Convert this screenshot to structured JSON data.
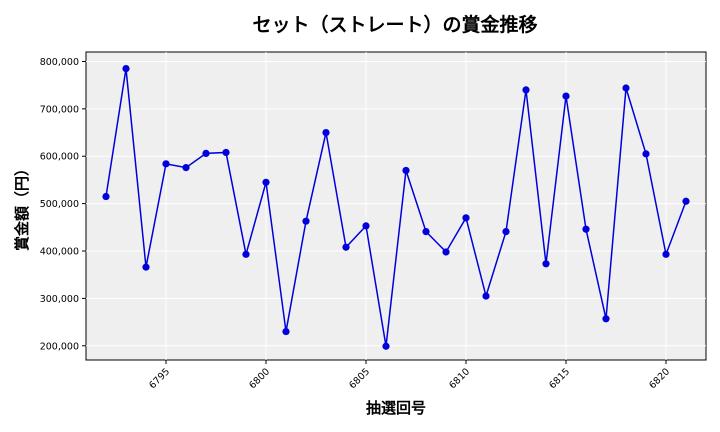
{
  "chart_data": {
    "type": "line",
    "title": "セット（ストレート）の賞金推移",
    "xlabel": "抽選回号",
    "ylabel": "賞金額（円）",
    "xlim": [
      6791,
      6822
    ],
    "ylim": [
      170000,
      820000
    ],
    "xticks": [
      6795,
      6800,
      6805,
      6810,
      6815,
      6820
    ],
    "yticks": [
      200000,
      300000,
      400000,
      500000,
      600000,
      700000,
      800000
    ],
    "ytick_labels": [
      "200,000",
      "300,000",
      "400,000",
      "500,000",
      "600,000",
      "700,000",
      "800,000"
    ],
    "grid": true,
    "background": "#efefef",
    "series": [
      {
        "color": "#0000dd",
        "x": [
          6792,
          6793,
          6794,
          6795,
          6796,
          6797,
          6798,
          6799,
          6800,
          6801,
          6802,
          6803,
          6804,
          6805,
          6806,
          6807,
          6808,
          6809,
          6810,
          6811,
          6812,
          6813,
          6814,
          6815,
          6816,
          6817,
          6818,
          6819,
          6820,
          6821
        ],
        "values": [
          515000,
          785000,
          366000,
          584000,
          576000,
          606000,
          608000,
          393000,
          545000,
          230000,
          463000,
          650000,
          408000,
          453000,
          199000,
          570000,
          441000,
          398000,
          470000,
          305000,
          441000,
          740000,
          373000,
          727000,
          446000,
          257000,
          744000,
          605000,
          393000,
          505000
        ]
      }
    ]
  }
}
